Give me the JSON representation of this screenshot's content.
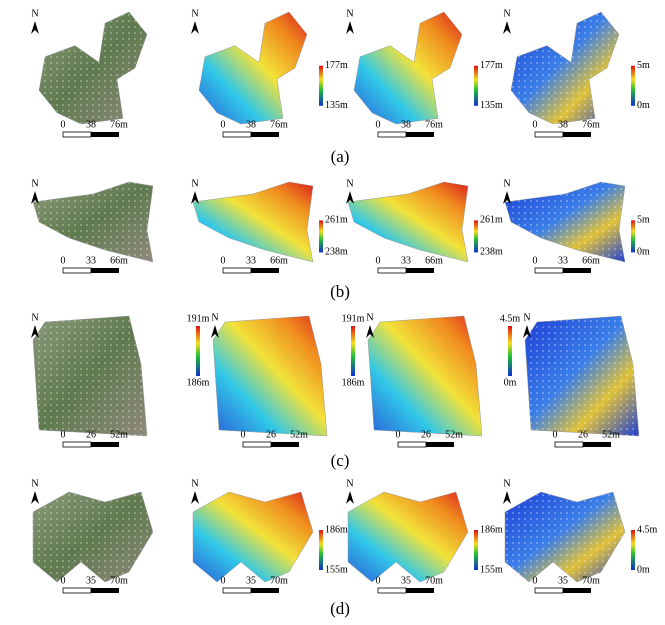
{
  "north_label": "N",
  "rows": [
    {
      "label": "(a)",
      "scale_bar": [
        "0",
        "38",
        "76m"
      ],
      "colorbars": [
        [
          "177m",
          "135m"
        ],
        [
          "177m",
          "135m"
        ],
        [
          "5m",
          "0m"
        ]
      ]
    },
    {
      "label": "(b)",
      "scale_bar": [
        "0",
        "33",
        "66m"
      ],
      "colorbars": [
        [
          "261m",
          "238m"
        ],
        [
          "261m",
          "238m"
        ],
        [
          "5m",
          "0m"
        ]
      ]
    },
    {
      "label": "(c)",
      "scale_bar": [
        "0",
        "26",
        "52m"
      ],
      "colorbars": [
        [
          "191m",
          "186m"
        ],
        [
          "191m",
          "186m"
        ],
        [
          "4.5m",
          "0m"
        ]
      ]
    },
    {
      "label": "(d)",
      "scale_bar": [
        "0",
        "35",
        "70m"
      ],
      "colorbars": [
        [
          "186m",
          "155m"
        ],
        [
          "186m",
          "155m"
        ],
        [
          "4.5m",
          "0m"
        ]
      ]
    }
  ]
}
